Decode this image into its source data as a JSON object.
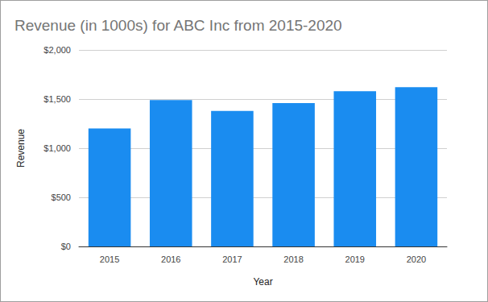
{
  "chart_data": {
    "type": "bar",
    "title": "Revenue (in 1000s) for ABC Inc from 2015-2020",
    "x_label": "Year",
    "y_label": "Revenue",
    "categories": [
      "2015",
      "2016",
      "2017",
      "2018",
      "2019",
      "2020"
    ],
    "values": [
      1200,
      1490,
      1380,
      1460,
      1580,
      1620
    ],
    "color": "#1a8cf0",
    "ylim": [
      0,
      2000
    ],
    "yticks": [
      {
        "value": 0,
        "label": "$0"
      },
      {
        "value": 500,
        "label": "$500"
      },
      {
        "value": 1000,
        "label": "$1,000"
      },
      {
        "value": 1500,
        "label": "$1,500"
      },
      {
        "value": 2000,
        "label": "$2,000"
      }
    ],
    "grid": true
  }
}
